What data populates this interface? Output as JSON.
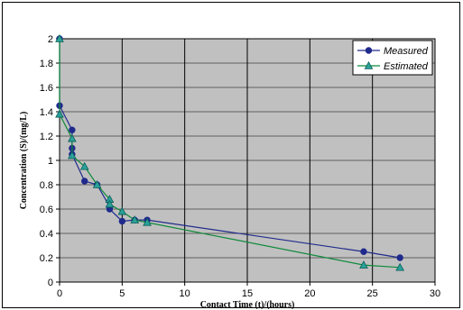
{
  "chart_data": {
    "type": "line",
    "title": "",
    "xlabel": "Contact Time (t)/(hours)",
    "ylabel": "Concentration (S)/(mg/L)",
    "xlim": [
      0,
      30
    ],
    "ylim": [
      0,
      2
    ],
    "x_ticks": [
      "0",
      "5",
      "10",
      "15",
      "20",
      "25",
      "30"
    ],
    "y_ticks": [
      "0",
      "0.2",
      "0.4",
      "0.6",
      "0.8",
      "1",
      "1.2",
      "1.4",
      "1.6",
      "1.8",
      "2"
    ],
    "grid": true,
    "legend_position": "top-right",
    "plot_background": "#c0c0c0",
    "series": [
      {
        "name": "Measured",
        "color": "#1f2a8c",
        "marker": "circle",
        "x": [
          0,
          0,
          1,
          1,
          1,
          2,
          3,
          4,
          4,
          5,
          6,
          7,
          24.3,
          27.2
        ],
        "y": [
          2.0,
          1.45,
          1.25,
          1.1,
          1.05,
          0.83,
          0.8,
          0.62,
          0.6,
          0.5,
          0.51,
          0.51,
          0.25,
          0.2
        ]
      },
      {
        "name": "Estimated",
        "color": "#0f8a3a",
        "marker": "triangle",
        "x": [
          0,
          0,
          1,
          1,
          2,
          3,
          4,
          4,
          5,
          6,
          7,
          24.3,
          27.2
        ],
        "y": [
          2.0,
          1.38,
          1.18,
          1.04,
          0.95,
          0.8,
          0.68,
          0.64,
          0.58,
          0.51,
          0.49,
          0.14,
          0.12
        ]
      }
    ]
  }
}
